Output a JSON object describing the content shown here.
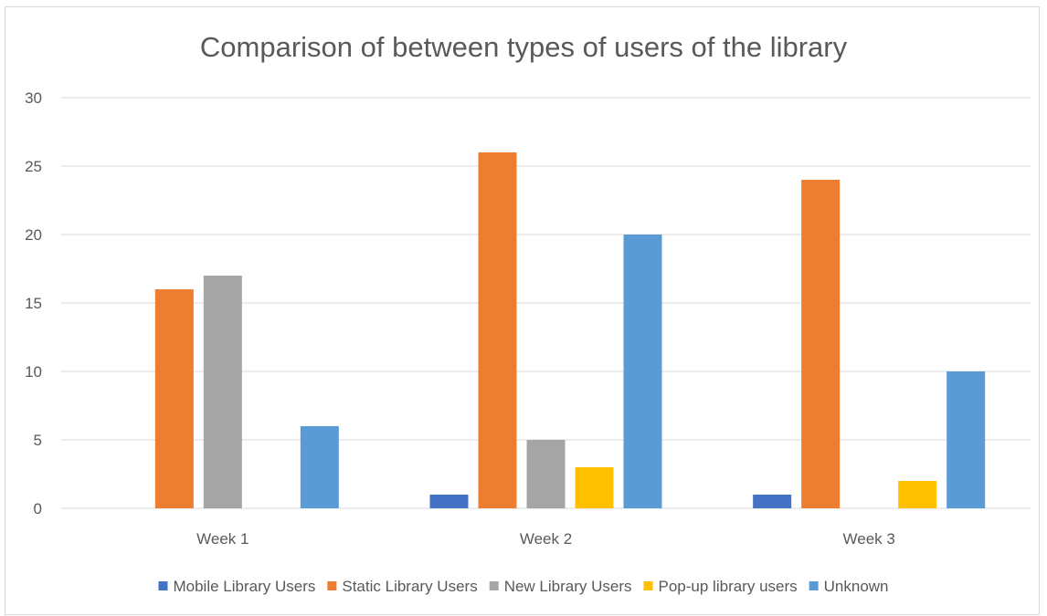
{
  "chart_data": {
    "type": "bar",
    "title": "Comparison of between types of users of the library",
    "xlabel": "",
    "ylabel": "",
    "categories": [
      "Week 1",
      "Week 2",
      "Week 3"
    ],
    "ylim": [
      0,
      30
    ],
    "yticks": [
      "0",
      "5",
      "10",
      "15",
      "20",
      "25",
      "30"
    ],
    "grid": true,
    "legend_position": "bottom",
    "series": [
      {
        "name": "Mobile Library Users",
        "color": "#4472c4",
        "values": [
          0,
          1,
          1
        ]
      },
      {
        "name": "Static Library Users",
        "color": "#ed7d31",
        "values": [
          16,
          26,
          24
        ]
      },
      {
        "name": "New Library Users",
        "color": "#a5a5a5",
        "values": [
          17,
          5,
          0
        ]
      },
      {
        "name": "Pop-up library users",
        "color": "#ffc000",
        "values": [
          0,
          3,
          2
        ]
      },
      {
        "name": "Unknown",
        "color": "#5b9bd5",
        "values": [
          6,
          20,
          10
        ]
      }
    ]
  }
}
